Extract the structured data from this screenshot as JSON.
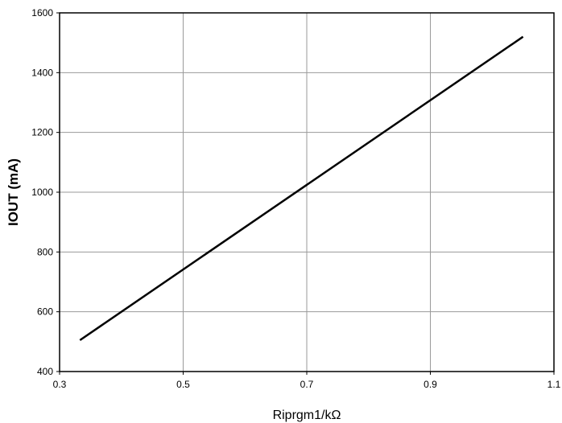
{
  "chart_data": {
    "type": "line",
    "title": "",
    "xlabel": "Riprgm1/kΩ",
    "ylabel": "IOUT (mA)",
    "xlim": [
      0.3,
      1.1
    ],
    "ylim": [
      400,
      1600
    ],
    "x_ticks": [
      0.3,
      0.5,
      0.7,
      0.9,
      1.1
    ],
    "x_tick_labels": [
      "0.3",
      "0.5",
      "0.7",
      "0.9",
      "1.1"
    ],
    "y_ticks": [
      400,
      600,
      800,
      1000,
      1200,
      1400,
      1600
    ],
    "y_tick_labels": [
      "400",
      "600",
      "800",
      "1000",
      "1200",
      "1400",
      "1600"
    ],
    "grid": true,
    "legend": "none",
    "series": [
      {
        "color": "#000000",
        "x": [
          0.333,
          1.05
        ],
        "y": [
          505,
          1520
        ]
      }
    ]
  }
}
